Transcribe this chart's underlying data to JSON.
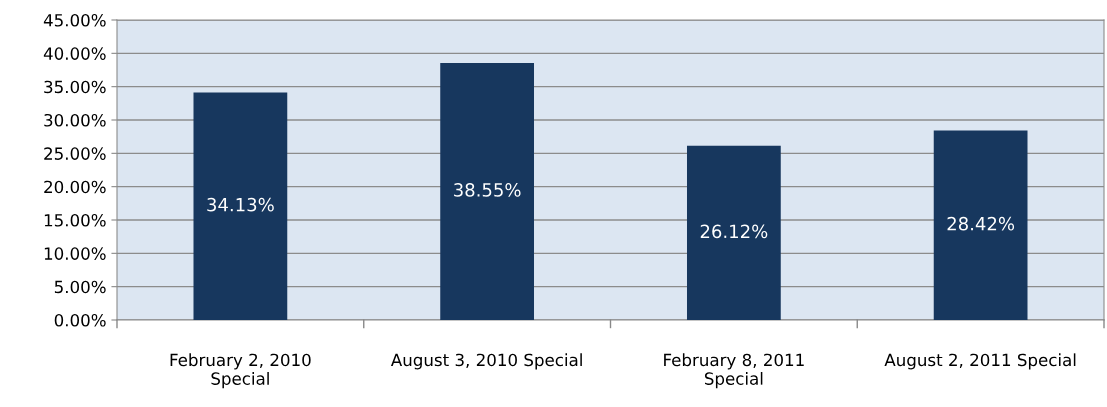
{
  "chart_data": {
    "type": "bar",
    "categories": [
      "February 2, 2010 Special",
      "August 3, 2010 Special",
      "February 8, 2011 Special",
      "August 2, 2011 Special"
    ],
    "values": [
      34.13,
      38.55,
      26.12,
      28.42
    ],
    "value_labels": [
      "34.13%",
      "38.55%",
      "26.12%",
      "28.42%"
    ],
    "color": "#17375e",
    "ylim": [
      0,
      45
    ],
    "yticks": [
      {
        "value": 0,
        "label": "0.00%"
      },
      {
        "value": 5,
        "label": "5.00%"
      },
      {
        "value": 10,
        "label": "10.00%"
      },
      {
        "value": 15,
        "label": "15.00%"
      },
      {
        "value": 20,
        "label": "20.00%"
      },
      {
        "value": 25,
        "label": "25.00%"
      },
      {
        "value": 30,
        "label": "30.00%"
      },
      {
        "value": 35,
        "label": "35.00%"
      },
      {
        "value": 40,
        "label": "40.00%"
      },
      {
        "value": 45,
        "label": "45.00%"
      }
    ],
    "grid": "y"
  }
}
